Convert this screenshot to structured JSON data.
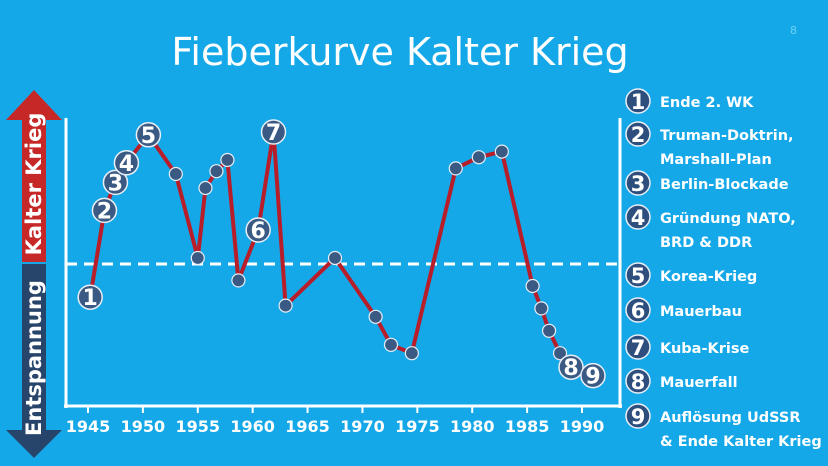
{
  "title": "Fieberkurve Kalter Krieg",
  "corner_mark": "8",
  "colors": {
    "background": "#15a8e8",
    "line": "#b81e2a",
    "marker": "#3a5a84",
    "marker_stroke": "#e8eef6",
    "arrow_up": "#c62828",
    "arrow_down": "#27446b",
    "badge": "#2e4f7e",
    "axis": "#ffffff"
  },
  "chart_data": {
    "type": "line",
    "title": "Fieberkurve Kalter Krieg",
    "xlabel": "",
    "ylabel_up": "Kalter Krieg",
    "ylabel_down": "Entspannung",
    "xlim": [
      1944,
      1992
    ],
    "ylim": [
      0,
      100
    ],
    "xticks": [
      1945,
      1950,
      1955,
      1960,
      1965,
      1970,
      1975,
      1980,
      1985,
      1990
    ],
    "baseline": 50,
    "series": [
      {
        "values": [
          {
            "x": 1945.2,
            "y": 36
          },
          {
            "x": 1946.5,
            "y": 67
          },
          {
            "x": 1947.5,
            "y": 77
          },
          {
            "x": 1948.5,
            "y": 84
          },
          {
            "x": 1950.5,
            "y": 94
          },
          {
            "x": 1953,
            "y": 80
          },
          {
            "x": 1955,
            "y": 50
          },
          {
            "x": 1955.7,
            "y": 75
          },
          {
            "x": 1956.7,
            "y": 81
          },
          {
            "x": 1957.7,
            "y": 85
          },
          {
            "x": 1958.7,
            "y": 42
          },
          {
            "x": 1960.5,
            "y": 60
          },
          {
            "x": 1961.9,
            "y": 95
          },
          {
            "x": 1963,
            "y": 33
          },
          {
            "x": 1967.5,
            "y": 50
          },
          {
            "x": 1971.2,
            "y": 29
          },
          {
            "x": 1972.6,
            "y": 19
          },
          {
            "x": 1974.5,
            "y": 16
          },
          {
            "x": 1978.5,
            "y": 82
          },
          {
            "x": 1980.6,
            "y": 86
          },
          {
            "x": 1982.7,
            "y": 88
          },
          {
            "x": 1985.5,
            "y": 40
          },
          {
            "x": 1986.3,
            "y": 32
          },
          {
            "x": 1987,
            "y": 24
          },
          {
            "x": 1988,
            "y": 16
          },
          {
            "x": 1989,
            "y": 11
          },
          {
            "x": 1991,
            "y": 8
          }
        ]
      }
    ],
    "annotations": [
      {
        "label": "1",
        "x": 1945.2,
        "y": 36
      },
      {
        "label": "2",
        "x": 1946.5,
        "y": 67
      },
      {
        "label": "3",
        "x": 1947.5,
        "y": 77
      },
      {
        "label": "4",
        "x": 1948.5,
        "y": 84
      },
      {
        "label": "5",
        "x": 1950.5,
        "y": 94
      },
      {
        "label": "6",
        "x": 1960.5,
        "y": 60
      },
      {
        "label": "7",
        "x": 1961.9,
        "y": 95
      },
      {
        "label": "8",
        "x": 1989,
        "y": 11
      },
      {
        "label": "9",
        "x": 1991,
        "y": 8
      }
    ],
    "legend_position": "right",
    "legend": [
      {
        "number": "1",
        "lines": [
          "Ende 2. WK"
        ]
      },
      {
        "number": "2",
        "lines": [
          "Truman-Doktrin,",
          "Marshall-Plan"
        ]
      },
      {
        "number": "3",
        "lines": [
          "Berlin-Blockade"
        ]
      },
      {
        "number": "4",
        "lines": [
          "Gründung NATO,",
          "BRD & DDR"
        ]
      },
      {
        "number": "5",
        "lines": [
          "Korea-Krieg"
        ]
      },
      {
        "number": "6",
        "lines": [
          "Mauerbau"
        ]
      },
      {
        "number": "7",
        "lines": [
          "Kuba-Krise"
        ]
      },
      {
        "number": "8",
        "lines": [
          "Mauerfall"
        ]
      },
      {
        "number": "9",
        "lines": [
          "Auflösung UdSSR",
          "& Ende Kalter Krieg"
        ]
      }
    ]
  }
}
